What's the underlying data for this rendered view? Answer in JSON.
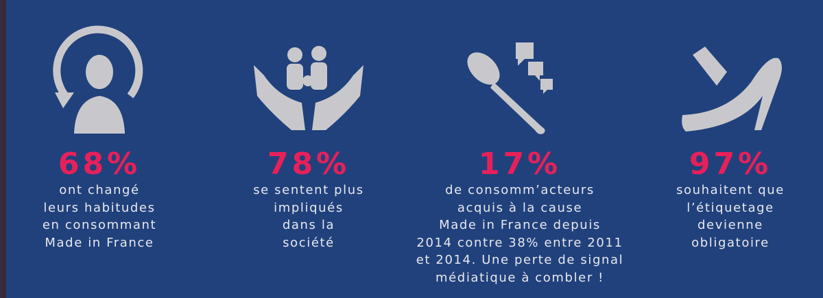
{
  "items": [
    {
      "percent": "68%",
      "lines": [
        "ont changé",
        "leurs habitudes",
        "en consommant",
        "Made in France"
      ]
    },
    {
      "percent": "78%",
      "lines": [
        "se sentent plus",
        "impliqués",
        "dans la",
        "société"
      ]
    },
    {
      "percent": "17%",
      "lines": [
        "de consomm’acteurs",
        "acquis à la cause",
        "Made in France depuis",
        "2014 contre 38% entre 2011",
        "et 2014. Une perte de signal",
        "médiatique à combler !"
      ]
    },
    {
      "percent": "97%",
      "lines": [
        "souhaitent que",
        "l’étiquetage",
        "devienne",
        "obligatoire"
      ]
    }
  ]
}
